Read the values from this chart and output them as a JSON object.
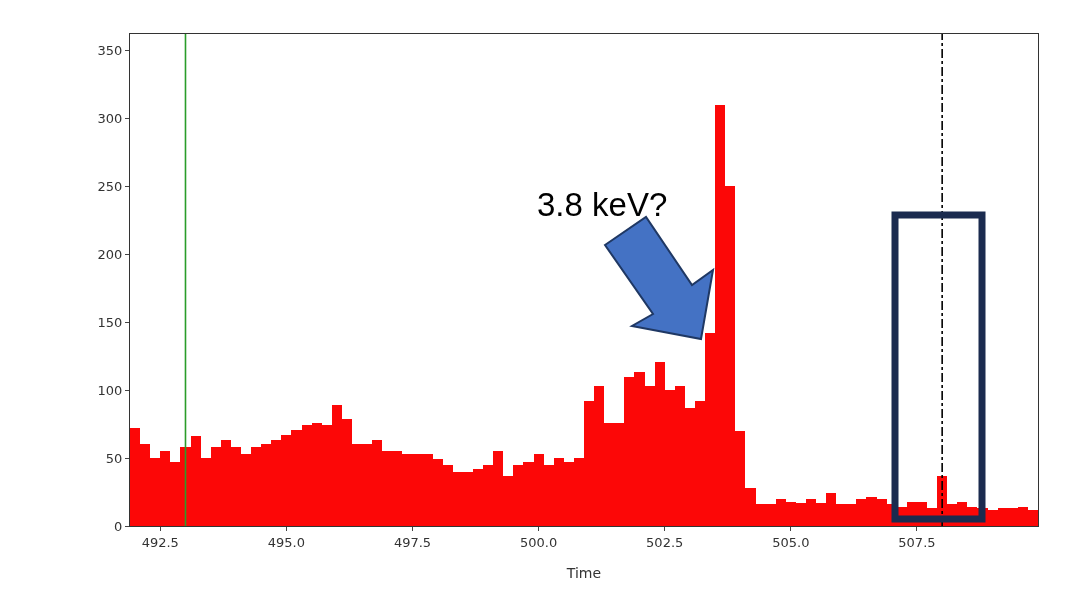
{
  "chart_data": {
    "type": "histogram",
    "xlabel": "Time",
    "color": "#fc0707",
    "bins": [
      491.9,
      492.1,
      492.3,
      492.5,
      492.7,
      492.9,
      493.1,
      493.3,
      493.5,
      493.7,
      493.9,
      494.1,
      494.3,
      494.5,
      494.7,
      494.9,
      495.1,
      495.3,
      495.5,
      495.7,
      495.9,
      496.1,
      496.3,
      496.5,
      496.7,
      496.9,
      497.1,
      497.3,
      497.5,
      497.7,
      497.9,
      498.1,
      498.3,
      498.5,
      498.7,
      498.9,
      499.1,
      499.3,
      499.5,
      499.7,
      499.9,
      500.1,
      500.3,
      500.5,
      500.7,
      500.9,
      501.1,
      501.3,
      501.5,
      501.7,
      501.9,
      502.1,
      502.3,
      502.5,
      502.7,
      502.9,
      503.1,
      503.3,
      503.5,
      503.7,
      503.9,
      504.1,
      504.3,
      504.5,
      504.7,
      504.9,
      505.1,
      505.3,
      505.5,
      505.7,
      505.9,
      506.1,
      506.3,
      506.5,
      506.7,
      506.9,
      507.1,
      507.3,
      507.5,
      507.7,
      507.9,
      508.1,
      508.3,
      508.5,
      508.7,
      508.9,
      509.1,
      509.3,
      509.5,
      509.7,
      509.9
    ],
    "values": [
      72,
      60,
      50,
      55,
      47,
      58,
      66,
      50,
      58,
      63,
      58,
      53,
      58,
      60,
      63,
      67,
      71,
      74,
      76,
      74,
      89,
      79,
      60,
      60,
      63,
      55,
      55,
      53,
      53,
      53,
      49,
      45,
      40,
      40,
      42,
      45,
      55,
      37,
      45,
      47,
      53,
      45,
      50,
      47,
      50,
      92,
      103,
      76,
      76,
      110,
      113,
      103,
      121,
      100,
      103,
      87,
      92,
      142,
      310,
      250,
      70,
      28,
      16,
      16,
      20,
      18,
      17,
      20,
      17,
      24,
      16,
      16,
      20,
      21,
      20,
      16,
      14,
      18,
      18,
      13,
      37,
      16,
      18,
      14,
      13,
      12,
      13,
      13,
      14,
      12
    ],
    "xlim": [
      491.9,
      509.9
    ],
    "ylim": [
      0,
      362
    ],
    "xticks": [
      {
        "value": 492.5,
        "label": "492.5"
      },
      {
        "value": 495,
        "label": "495.0"
      },
      {
        "value": 497.5,
        "label": "497.5"
      },
      {
        "value": 500,
        "label": "500.0"
      },
      {
        "value": 502.5,
        "label": "502.5"
      },
      {
        "value": 505,
        "label": "505.0"
      },
      {
        "value": 507.5,
        "label": "507.5"
      }
    ],
    "yticks": [
      0,
      50,
      100,
      150,
      200,
      250,
      300,
      350
    ],
    "ref_lines": [
      {
        "axis": "x",
        "value": 493.0,
        "color": "#2a9d2a",
        "line_style": "solid"
      },
      {
        "axis": "x",
        "value": 508.0,
        "color": "#000000",
        "line_style": "dashdot"
      }
    ],
    "annotations": [
      "3.8 keV?"
    ],
    "grid": false
  }
}
